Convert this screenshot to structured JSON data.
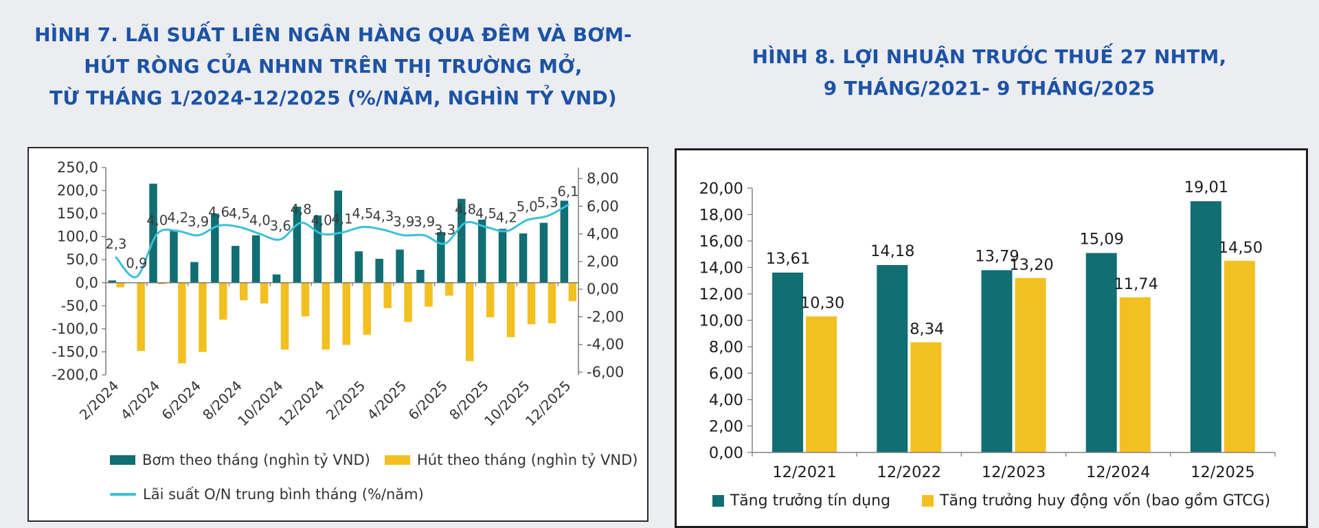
{
  "page": {
    "background": "#ecedf0",
    "title_color": "#1d53a5"
  },
  "figure7": {
    "title_lines": [
      "HÌNH 7. LÃI SUẤT LIÊN NGÂN HÀNG QUA ĐÊM VÀ BƠM-",
      "HÚT RÒNG CỦA NHNN TRÊN THỊ TRƯỜNG MỞ,",
      "TỪ THÁNG 1/2024-12/2025 (%/NĂM, NGHÌN TỶ VND)"
    ]
  },
  "figure8": {
    "title_lines": [
      "HÌNH 8. LỢI NHUẬN TRƯỚC THUẾ 27 NHTM,",
      "9 THÁNG/2021- 9 THÁNG/2025"
    ]
  },
  "chart_data": [
    {
      "id": "fig7",
      "type": "bar-line-combo",
      "grid": false,
      "legend_position": "bottom-left",
      "categories": [
        "2/2024",
        "3/2024",
        "4/2024",
        "5/2024",
        "6/2024",
        "7/2024",
        "8/2024",
        "9/2024",
        "10/2024",
        "11/2024",
        "12/2024",
        "1/2025",
        "2/2025",
        "3/2025",
        "4/2025",
        "5/2025",
        "6/2025",
        "7/2025",
        "8/2025",
        "9/2025",
        "10/2025",
        "11/2025",
        "12/2025"
      ],
      "x_tick_labels": [
        "2/2024",
        "4/2024",
        "6/2024",
        "8/2024",
        "10/2024",
        "12/2024",
        "2/2025",
        "4/2025",
        "6/2025",
        "8/2025",
        "10/2025",
        "12/2025"
      ],
      "series": [
        {
          "name": "Bơm theo tháng (nghìn tỷ VND)",
          "type": "bar",
          "axis": "left",
          "color": "#116e72",
          "values": [
            5,
            0,
            215,
            115,
            45,
            150,
            80,
            103,
            18,
            165,
            146,
            200,
            68,
            52,
            72,
            28,
            110,
            182,
            137,
            117,
            107,
            130,
            178
          ]
        },
        {
          "name": "Hút theo tháng (nghìn tỷ VND)",
          "type": "bar",
          "axis": "left",
          "color": "#f3c021",
          "values": [
            -10,
            -148,
            -3,
            -175,
            -150,
            -80,
            -38,
            -45,
            -145,
            -73,
            -145,
            -135,
            -113,
            -55,
            -85,
            -52,
            -28,
            -170,
            -75,
            -118,
            -90,
            -88,
            -40
          ]
        },
        {
          "name": "Lãi suất O/N trung bình tháng (%/năm)",
          "type": "line",
          "axis": "right",
          "color": "#3bbfd8",
          "values": [
            2.3,
            0.9,
            4.0,
            4.2,
            3.9,
            4.6,
            4.5,
            4.0,
            3.6,
            4.8,
            4.0,
            4.1,
            4.5,
            4.3,
            3.9,
            3.9,
            3.3,
            4.8,
            4.5,
            4.2,
            5.0,
            5.3,
            6.1
          ],
          "labels": [
            "2,3",
            "0,9",
            "4,0",
            "4,2",
            "3,9",
            "4,6",
            "4,5",
            "4,0",
            "3,6",
            "4,8",
            "4,0",
            "4,1",
            "4,5",
            "4,3",
            "3,9",
            "3,9",
            "3,3",
            "4,8",
            "4,5",
            "4,2",
            "5,0",
            "5,3",
            "6,1"
          ]
        }
      ],
      "left_axis": {
        "max": 250,
        "min": -200,
        "step": 50,
        "tick_labels": [
          "250,0",
          "200,0",
          "150,0",
          "100,0",
          "50,0",
          "0,0",
          "-50,0",
          "-100,0",
          "-150,0",
          "-200,0"
        ]
      },
      "right_axis": {
        "max": 8,
        "min": -6,
        "step": 2,
        "tick_labels": [
          "8,00",
          "6,00",
          "4,00",
          "2,00",
          "0,00",
          "-2,00",
          "-4,00",
          "-6,00"
        ]
      }
    },
    {
      "id": "fig8",
      "type": "bar",
      "grid": false,
      "legend_position": "bottom-center",
      "categories": [
        "12/2021",
        "12/2022",
        "12/2023",
        "12/2024",
        "12/2025"
      ],
      "series": [
        {
          "name": "Tăng trưởng tín dụng",
          "color": "#116e72",
          "values": [
            13.61,
            14.18,
            13.79,
            15.09,
            19.01
          ],
          "labels": [
            "13,61",
            "14,18",
            "13,79",
            "15,09",
            "19,01"
          ]
        },
        {
          "name": "Tăng trưởng huy động vốn (bao gồm GTCG)",
          "color": "#f3c021",
          "values": [
            10.3,
            8.34,
            13.2,
            11.74,
            14.5
          ],
          "labels": [
            "10,30",
            "8,34",
            "13,20",
            "11,74",
            "14,50"
          ]
        }
      ],
      "y_axis": {
        "max": 20,
        "min": 0,
        "step": 2,
        "tick_labels": [
          "20,00",
          "18,00",
          "16,00",
          "14,00",
          "12,00",
          "10,00",
          "8,00",
          "6,00",
          "4,00",
          "2,00",
          "0,00"
        ]
      }
    }
  ]
}
